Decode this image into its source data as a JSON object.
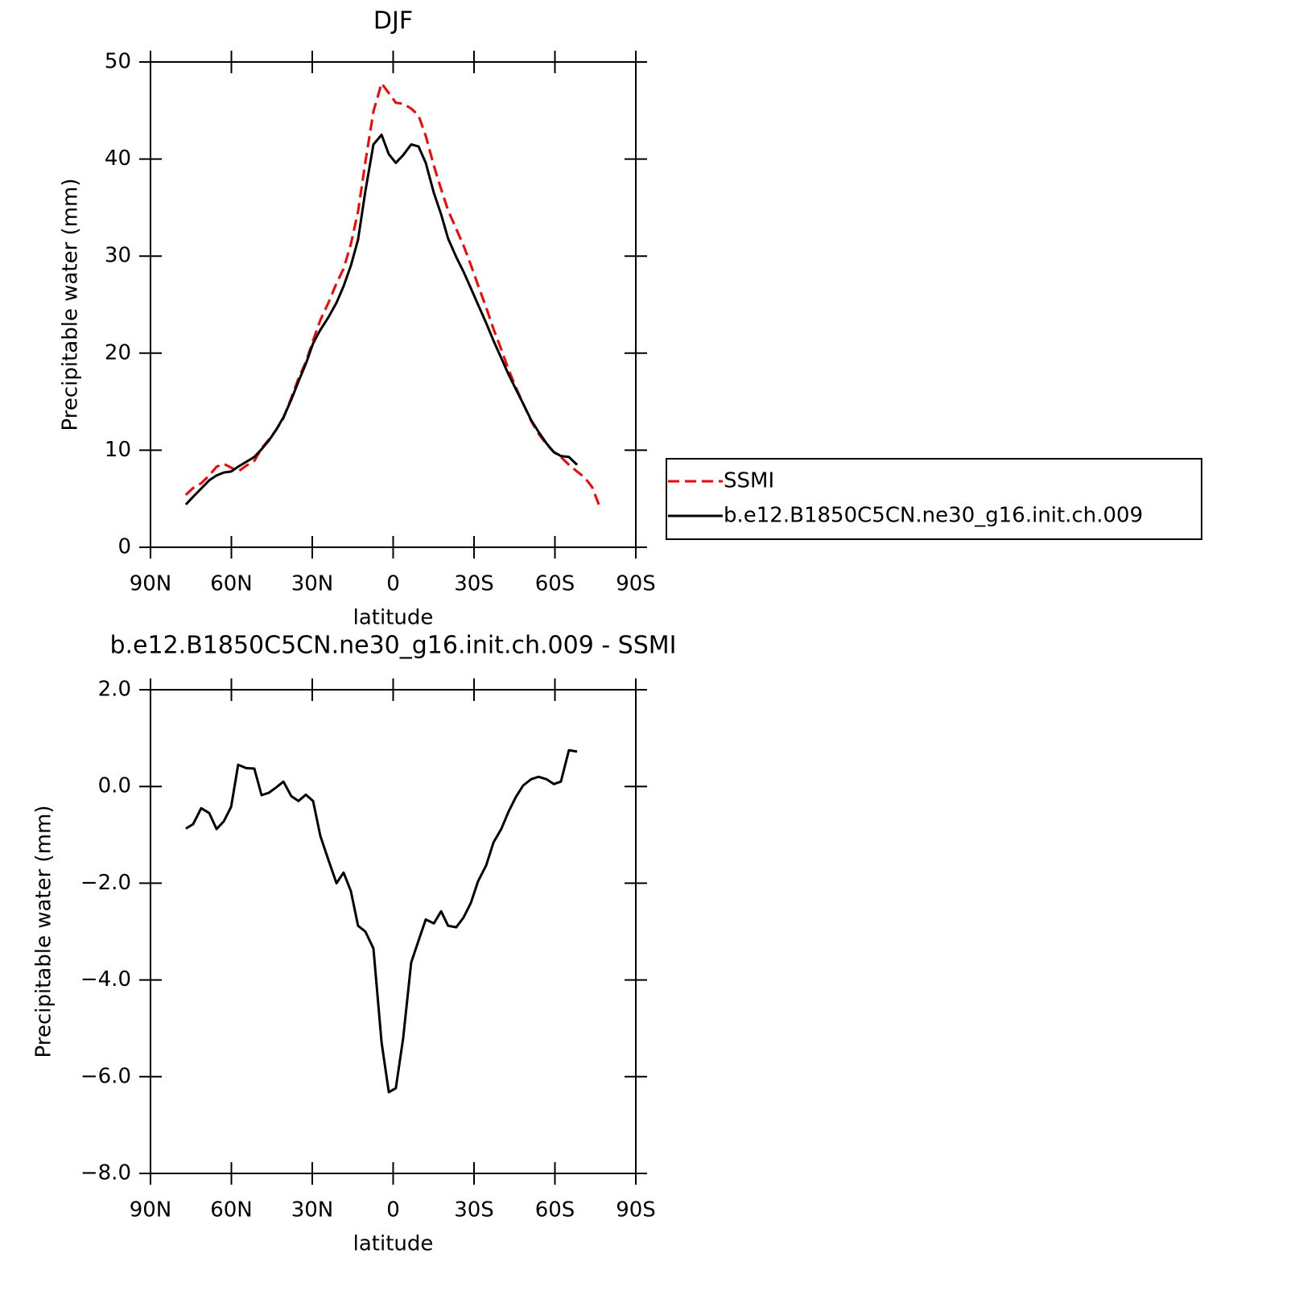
{
  "chart_data": [
    {
      "type": "line",
      "title": "DJF",
      "xlabel": "latitude",
      "ylabel": "Precipitable water (mm)",
      "x": [
        76.9,
        74.2,
        71.2,
        68.2,
        65.5,
        62.8,
        60.1,
        57.5,
        54.5,
        51.5,
        48.8,
        46.1,
        43.4,
        40.7,
        37.8,
        35.1,
        32.4,
        29.7,
        27.0,
        24.0,
        21.0,
        18.4,
        15.7,
        13.0,
        10.3,
        7.3,
        4.3,
        1.6,
        -1.0,
        -3.7,
        -6.7,
        -9.4,
        -12.1,
        -15.1,
        -17.8,
        -20.4,
        -23.4,
        -26.1,
        -28.8,
        -31.5,
        -34.5,
        -37.2,
        -40.1,
        -42.8,
        -45.5,
        -48.2,
        -51.2,
        -53.9,
        -56.9,
        -59.6,
        -62.2,
        -65.2,
        -68.2,
        -71.0,
        -73.8,
        -76.3
      ],
      "series": [
        {
          "name": "SSMI",
          "color": "#ff0000",
          "dashed": true,
          "values": [
            5.4,
            6.1,
            6.6,
            7.4,
            8.3,
            8.6,
            8.2,
            7.8,
            8.4,
            8.9,
            10.2,
            11.1,
            12.1,
            13.3,
            15.4,
            17.4,
            19.1,
            21.3,
            23.4,
            25.2,
            27.2,
            28.7,
            31.2,
            34.6,
            39.7,
            44.9,
            47.8,
            46.8,
            45.8,
            45.7,
            45.2,
            44.5,
            42.4,
            39.3,
            36.9,
            34.7,
            32.8,
            31.1,
            29.1,
            27.0,
            24.7,
            22.5,
            20.4,
            18.3,
            16.5,
            14.8,
            13.0,
            11.7,
            10.6,
            9.8,
            9.3,
            8.5,
            7.8,
            7.2,
            6.2,
            4.4
          ]
        },
        {
          "name": "b.e12.B1850C5CN.ne30_g16.init.ch.009",
          "color": "#000000",
          "dashed": false,
          "values": [
            4.4,
            5.2,
            6.05,
            6.9,
            7.4,
            7.7,
            7.8,
            8.3,
            8.8,
            9.3,
            10.1,
            11.0,
            12.1,
            13.4,
            15.2,
            17.1,
            18.9,
            21.0,
            22.4,
            23.7,
            25.2,
            26.9,
            29.0,
            31.7,
            36.7,
            41.5,
            42.5,
            40.5,
            39.6,
            40.4,
            41.5,
            41.3,
            39.6,
            36.5,
            34.3,
            31.8,
            29.9,
            28.4,
            26.7,
            25.0,
            23.1,
            21.3,
            19.5,
            17.8,
            16.3,
            14.8,
            13.1,
            11.9,
            10.7,
            9.8,
            9.4,
            9.3,
            8.5,
            null,
            null,
            null
          ]
        }
      ],
      "xlim": [
        90,
        -90
      ],
      "xticks": [
        {
          "value": 90,
          "label": "90N"
        },
        {
          "value": 60,
          "label": "60N"
        },
        {
          "value": 30,
          "label": "30N"
        },
        0,
        {
          "value": -30,
          "label": "30S"
        },
        {
          "value": -60,
          "label": "60S"
        },
        {
          "value": -90,
          "label": "90S"
        }
      ],
      "ylim": [
        0,
        50
      ],
      "yticks": [
        0,
        10,
        20,
        30,
        40,
        50
      ],
      "legend": "right"
    },
    {
      "type": "line",
      "title": "b.e12.B1850C5CN.ne30_g16.init.ch.009 - SSMI",
      "xlabel": "latitude",
      "ylabel": "Precipitable water (mm)",
      "x": [
        76.9,
        74.2,
        71.2,
        68.2,
        65.5,
        62.8,
        60.1,
        57.5,
        54.5,
        51.5,
        48.8,
        46.1,
        43.4,
        40.7,
        37.8,
        35.1,
        32.4,
        29.7,
        27.0,
        24.0,
        21.0,
        18.4,
        15.7,
        13.0,
        10.3,
        7.3,
        4.3,
        1.6,
        -1.0,
        -3.7,
        -6.7,
        -9.4,
        -12.1,
        -15.1,
        -17.8,
        -20.4,
        -23.4,
        -26.1,
        -28.8,
        -31.5,
        -34.5,
        -37.2,
        -40.1,
        -42.8,
        -45.5,
        -48.2,
        -51.2,
        -53.9,
        -56.9,
        -59.6,
        -62.2,
        -65.2,
        -68.2
      ],
      "series": [
        {
          "color": "#000000",
          "dashed": false,
          "values": [
            -0.87,
            -0.78,
            -0.45,
            -0.55,
            -0.88,
            -0.72,
            -0.42,
            0.45,
            0.38,
            0.37,
            -0.18,
            -0.13,
            -0.02,
            0.1,
            -0.2,
            -0.3,
            -0.17,
            -0.3,
            -1.02,
            -1.52,
            -2.0,
            -1.78,
            -2.16,
            -2.88,
            -3.0,
            -3.35,
            -5.29,
            -6.32,
            -6.24,
            -5.21,
            -3.64,
            -3.19,
            -2.75,
            -2.83,
            -2.58,
            -2.88,
            -2.91,
            -2.71,
            -2.41,
            -1.96,
            -1.63,
            -1.16,
            -0.88,
            -0.52,
            -0.22,
            0.02,
            0.15,
            0.2,
            0.15,
            0.05,
            0.1,
            0.75,
            0.72
          ]
        }
      ],
      "xlim": [
        90,
        -90
      ],
      "xticks": [
        {
          "value": 90,
          "label": "90N"
        },
        {
          "value": 60,
          "label": "60N"
        },
        {
          "value": 30,
          "label": "30N"
        },
        0,
        {
          "value": -30,
          "label": "30S"
        },
        {
          "value": -60,
          "label": "60S"
        },
        {
          "value": -90,
          "label": "90S"
        }
      ],
      "ylim": [
        -8,
        2
      ],
      "yticks": [
        {
          "value": -8,
          "label": "−8.0"
        },
        {
          "value": -6,
          "label": "−6.0"
        },
        {
          "value": -4,
          "label": "−4.0"
        },
        {
          "value": -2,
          "label": "−2.0"
        },
        {
          "value": 0,
          "label": "0.0"
        },
        {
          "value": 2,
          "label": "2.0"
        }
      ]
    }
  ]
}
